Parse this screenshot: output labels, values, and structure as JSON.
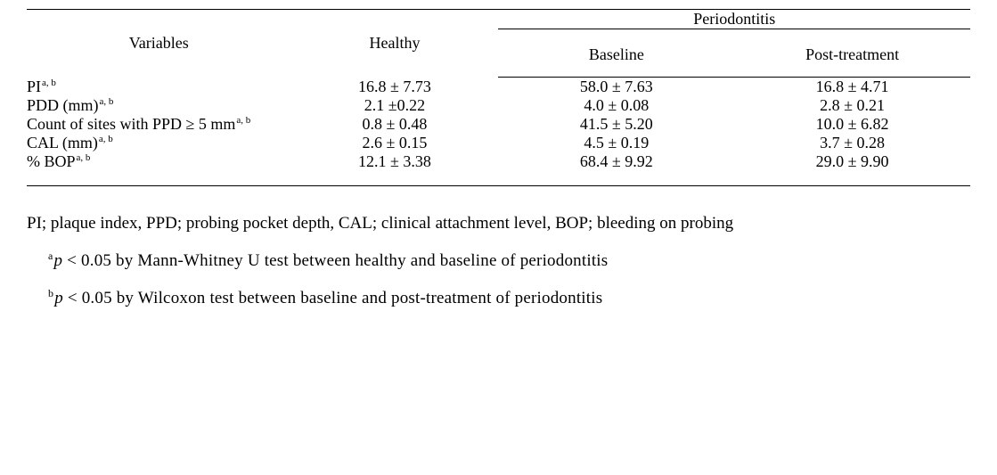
{
  "table": {
    "header": {
      "variables": "Variables",
      "healthy": "Healthy",
      "perio_group": "Periodontitis",
      "baseline": "Baseline",
      "post": "Post-treatment"
    },
    "sup_marker": "a, b",
    "rows": [
      {
        "label": "PI",
        "healthy": "16.8 ± 7.73",
        "baseline": "58.0 ± 7.63",
        "post": "16.8 ± 4.71"
      },
      {
        "label": "PDD (mm)",
        "healthy": "2.1 ±0.22",
        "baseline": "4.0 ± 0.08",
        "post": "2.8 ± 0.21"
      },
      {
        "label": "Count of sites with PPD ≥ 5 mm",
        "healthy": "0.8 ± 0.48",
        "baseline": "41.5 ± 5.20",
        "post": "10.0 ± 6.82"
      },
      {
        "label": "CAL (mm)",
        "healthy": "2.6 ± 0.15",
        "baseline": "4.5 ± 0.19",
        "post": "3.7 ± 0.28"
      },
      {
        "label": "% BOP",
        "healthy": "12.1 ± 3.38",
        "baseline": "68.4 ± 9.92",
        "post": "29.0 ± 9.90"
      }
    ]
  },
  "caption": "PI; plaque index, PPD; probing pocket depth, CAL; clinical attachment level, BOP; bleeding on probing",
  "footnotes": {
    "a_sup": "a",
    "a_text": " < 0.05 by Mann-Whitney U test between healthy and baseline of periodontitis",
    "b_sup": "b",
    "b_text": " < 0.05 by Wilcoxon test between baseline and post-treatment of periodontitis",
    "p": "p"
  }
}
